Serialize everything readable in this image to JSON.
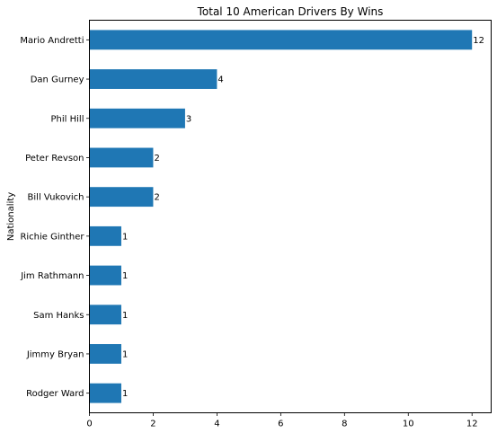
{
  "chart_data": {
    "type": "bar",
    "orientation": "horizontal",
    "title": "Total 10 American Drivers By Wins",
    "xlabel": "",
    "ylabel": "Nationality",
    "categories": [
      "Mario Andretti",
      "Dan Gurney",
      "Phil Hill",
      "Peter Revson",
      "Bill Vukovich",
      "Richie Ginther",
      "Jim Rathmann",
      "Sam Hanks",
      "Jimmy Bryan",
      "Rodger Ward"
    ],
    "values": [
      12,
      4,
      3,
      2,
      2,
      1,
      1,
      1,
      1,
      1
    ],
    "data_labels": [
      "12",
      "4",
      "3",
      "2",
      "2",
      "1",
      "1",
      "1",
      "1",
      "1"
    ],
    "xlim": [
      0,
      12.6
    ],
    "xticks": [
      0,
      2,
      4,
      6,
      8,
      10,
      12
    ],
    "xtick_labels": [
      "0",
      "2",
      "4",
      "6",
      "8",
      "10",
      "12"
    ],
    "bar_color": "#1f77b4",
    "grid": false,
    "legend": false
  }
}
